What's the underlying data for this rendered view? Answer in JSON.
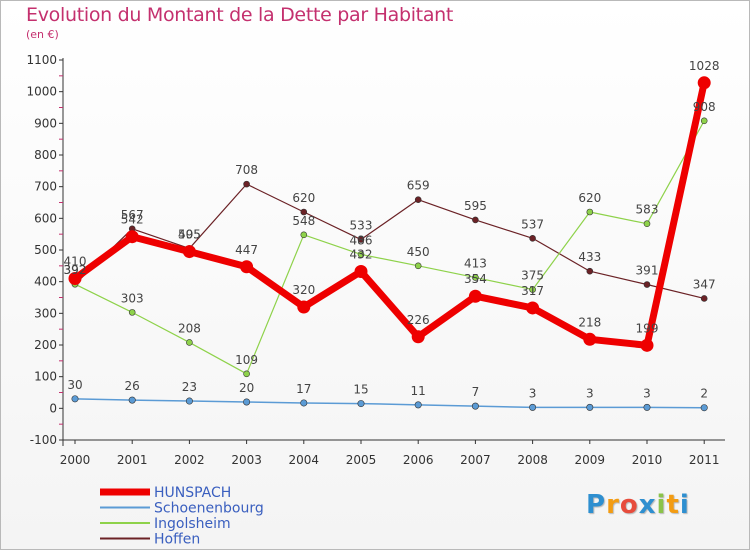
{
  "chart_data": {
    "type": "line",
    "title": "Evolution du Montant de la Dette par Habitant",
    "subtitle": "(en €)",
    "x": [
      "2000",
      "2001",
      "2002",
      "2003",
      "2004",
      "2005",
      "2006",
      "2007",
      "2008",
      "2009",
      "2010",
      "2011"
    ],
    "ylim": [
      -100,
      1100
    ],
    "yticks": [
      -100,
      0,
      100,
      200,
      300,
      400,
      500,
      600,
      700,
      800,
      900,
      1000,
      1100
    ],
    "grid": false,
    "legend_position": "bottom-left",
    "series": [
      {
        "name": "HUNSPACH",
        "color": "#ee0000",
        "values": [
          410,
          542,
          495,
          447,
          320,
          432,
          226,
          354,
          317,
          218,
          199,
          1028
        ]
      },
      {
        "name": "Schoenenbourg",
        "color": "#5b9bd5",
        "values": [
          30,
          26,
          23,
          20,
          17,
          15,
          11,
          7,
          3,
          3,
          3,
          2
        ]
      },
      {
        "name": "Ingolsheim",
        "color": "#8ed24a",
        "values": [
          392,
          303,
          208,
          109,
          548,
          486,
          450,
          413,
          375,
          620,
          583,
          908
        ]
      },
      {
        "name": "Hoffen",
        "color": "#6b2226",
        "values": [
          392,
          567,
          505,
          708,
          620,
          533,
          659,
          595,
          537,
          433,
          391,
          347
        ]
      }
    ],
    "point_labels": [
      [
        "410",
        "542",
        "495",
        "447",
        "320",
        "432",
        "226",
        "354",
        "317",
        "218",
        "199",
        "1028"
      ],
      [
        "30",
        "26",
        "23",
        "20",
        "17",
        "15",
        "11",
        "7",
        "3",
        "3",
        "3",
        "2"
      ],
      [
        "392",
        "303",
        "208",
        "109",
        "548",
        "486",
        "450",
        "413",
        "375",
        "620",
        "583",
        "908"
      ],
      [
        "392",
        "567",
        "505",
        "708",
        "620",
        "533",
        "659",
        "595",
        "537",
        "433",
        "391",
        "347"
      ]
    ]
  },
  "logo": {
    "letters": [
      "P",
      "r",
      "o",
      "x",
      "i",
      "t",
      "i"
    ],
    "colors": [
      "#2e8fd0",
      "#f39c12",
      "#e74c3c",
      "#2e8fd0",
      "#8bc34a",
      "#f39c12",
      "#2e8fd0"
    ]
  }
}
